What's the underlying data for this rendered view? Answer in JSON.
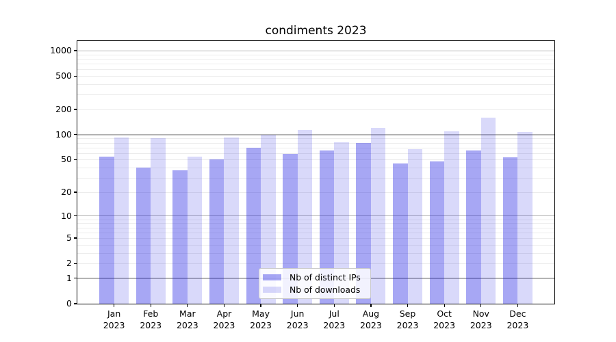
{
  "chart_data": {
    "type": "bar",
    "title": "condiments 2023",
    "categories": [
      "Jan 2023",
      "Feb 2023",
      "Mar 2023",
      "Apr 2023",
      "May 2023",
      "Jun 2023",
      "Jul 2023",
      "Aug 2023",
      "Sep 2023",
      "Oct 2023",
      "Nov 2023",
      "Dec 2023"
    ],
    "x_tick_line1": [
      "Jan",
      "Feb",
      "Mar",
      "Apr",
      "May",
      "Jun",
      "Jul",
      "Aug",
      "Sep",
      "Oct",
      "Nov",
      "Dec"
    ],
    "x_tick_line2": [
      "2023",
      "2023",
      "2023",
      "2023",
      "2023",
      "2023",
      "2023",
      "2023",
      "2023",
      "2023",
      "2023",
      "2023"
    ],
    "series": [
      {
        "name": "Nb of distinct IPs",
        "values": [
          54,
          40,
          37,
          50,
          69,
          59,
          64,
          79,
          45,
          48,
          64,
          53
        ],
        "base_color": "#0a0ae1",
        "alpha": 0.36,
        "blended_color": "#a7a7f4"
      },
      {
        "name": "Nb of downloads",
        "values": [
          92,
          90,
          54,
          92,
          100,
          113,
          81,
          120,
          67,
          110,
          160,
          107
        ],
        "base_color": "#0a0ae1",
        "alpha": 0.155,
        "blended_color": "#d9d9fa"
      }
    ],
    "y_scale": "log1p",
    "ylim": [
      0,
      1300
    ],
    "y_ticks": [
      0,
      1,
      2,
      5,
      10,
      20,
      50,
      100,
      200,
      500,
      1000
    ],
    "y_major_gridlines": [
      1,
      10,
      100,
      1000
    ],
    "y_minor_subs": [
      2,
      3,
      4,
      5,
      6,
      7,
      8,
      9
    ],
    "grid": true,
    "legend_position": "lower center",
    "colors": {
      "major_grid": "#b3b3b3",
      "minor_grid": "#ececec",
      "spine": "#000000",
      "text": "#000000",
      "background": "#ffffff"
    }
  }
}
